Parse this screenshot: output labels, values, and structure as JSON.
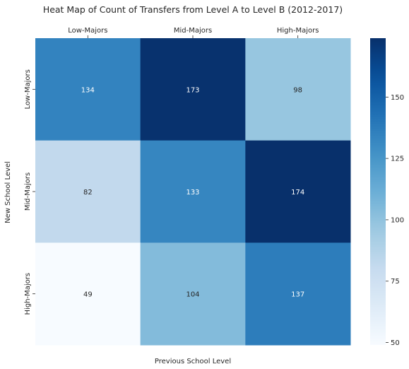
{
  "chart_data": {
    "type": "heatmap",
    "title": "Heat Map of Count of Transfers from Level A to Level B (2012-2017)",
    "xlabel": "Previous School Level",
    "ylabel": "New School Level",
    "x_categories": [
      "Low-Majors",
      "Mid-Majors",
      "High-Majors"
    ],
    "y_categories": [
      "Low-Majors",
      "Mid-Majors",
      "High-Majors"
    ],
    "values": [
      [
        134,
        173,
        98
      ],
      [
        82,
        133,
        174
      ],
      [
        49,
        104,
        137
      ]
    ],
    "colorbar": {
      "min": 49,
      "max": 174,
      "ticks": [
        50,
        75,
        100,
        125,
        150
      ],
      "colormap": "Blues",
      "low_color": "#f7fbff",
      "high_color": "#08306b"
    },
    "x_ticks_position": "top",
    "annotations": true
  }
}
